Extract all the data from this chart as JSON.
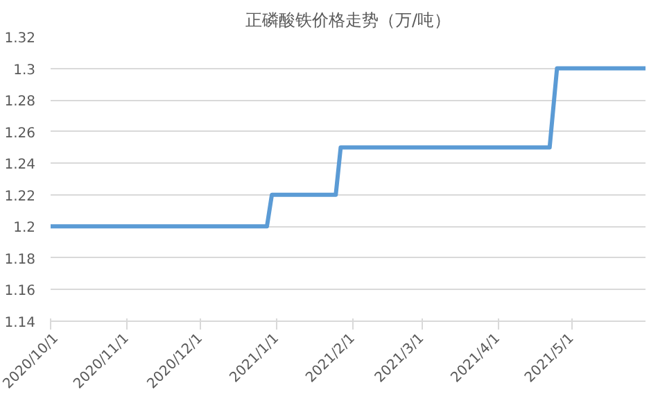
{
  "chart_data": {
    "type": "line",
    "title": "正磷酸铁价格走势（万/吨）",
    "x": [
      "2020-10-01",
      "2020-12-28",
      "2020-12-30",
      "2021-01-25",
      "2021-01-27",
      "2021-04-22",
      "2021-04-25",
      "2021-05-31"
    ],
    "series": [
      {
        "color": "#5b9bd5",
        "values": [
          1.2,
          1.2,
          1.22,
          1.22,
          1.25,
          1.25,
          1.3,
          1.3
        ]
      }
    ],
    "xlim": [
      "2020-10-01",
      "2021-05-31"
    ],
    "xticks": [
      {
        "value": "2020-10-01",
        "label": "2020/10/1"
      },
      {
        "value": "2020-11-01",
        "label": "2020/11/1"
      },
      {
        "value": "2020-12-01",
        "label": "2020/12/1"
      },
      {
        "value": "2021-01-01",
        "label": "2021/1/1"
      },
      {
        "value": "2021-02-01",
        "label": "2021/2/1"
      },
      {
        "value": "2021-03-01",
        "label": "2021/3/1"
      },
      {
        "value": "2021-04-01",
        "label": "2021/4/1"
      },
      {
        "value": "2021-05-01",
        "label": "2021/5/1"
      }
    ],
    "ylim": [
      1.14,
      1.32
    ],
    "yticks": [
      1.14,
      1.16,
      1.18,
      1.2,
      1.22,
      1.24,
      1.26,
      1.28,
      1.3,
      1.32
    ],
    "grid": "y",
    "marker": "none",
    "line_style": "solid"
  }
}
